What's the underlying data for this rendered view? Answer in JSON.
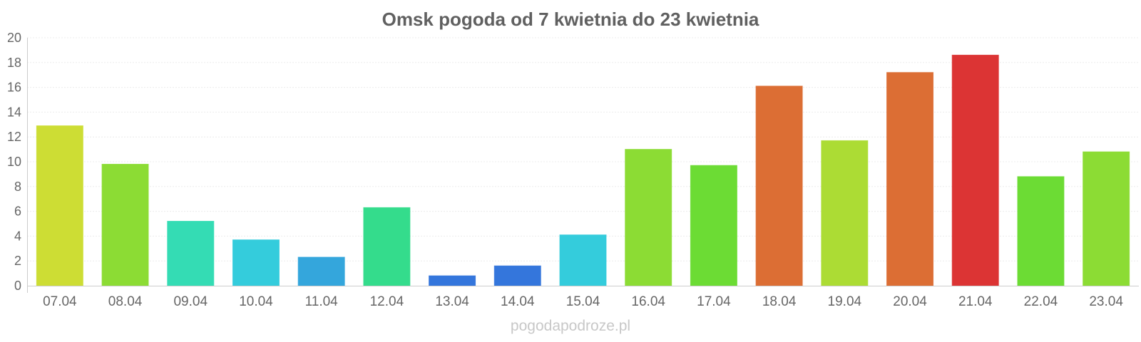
{
  "chart_data": {
    "type": "bar",
    "title": "Omsk pogoda od 7 kwietnia do 23 kwietnia",
    "xlabel": "",
    "ylabel": "",
    "ylim": [
      0,
      20
    ],
    "yticks": [
      0,
      2,
      4,
      6,
      8,
      10,
      12,
      14,
      16,
      18,
      20
    ],
    "grid": true,
    "categories": [
      "07.04",
      "08.04",
      "09.04",
      "10.04",
      "11.04",
      "12.04",
      "13.04",
      "14.04",
      "15.04",
      "16.04",
      "17.04",
      "18.04",
      "19.04",
      "20.04",
      "21.04",
      "22.04",
      "23.04"
    ],
    "values": [
      12.9,
      9.8,
      5.2,
      3.7,
      2.3,
      6.3,
      0.8,
      1.6,
      4.1,
      11.0,
      9.7,
      16.1,
      11.7,
      17.2,
      18.6,
      8.8,
      10.8
    ],
    "colors": [
      "#cddd34",
      "#8cdc34",
      "#34dcb4",
      "#34ccdc",
      "#34a6dc",
      "#34dc8c",
      "#3476dc",
      "#3476dc",
      "#34ccdc",
      "#8cdc34",
      "#6cdc34",
      "#dc6e34",
      "#acdc34",
      "#dc6e34",
      "#dc3434",
      "#6cdc34",
      "#8cdc34"
    ]
  },
  "watermark": "pogodapodroze.pl"
}
